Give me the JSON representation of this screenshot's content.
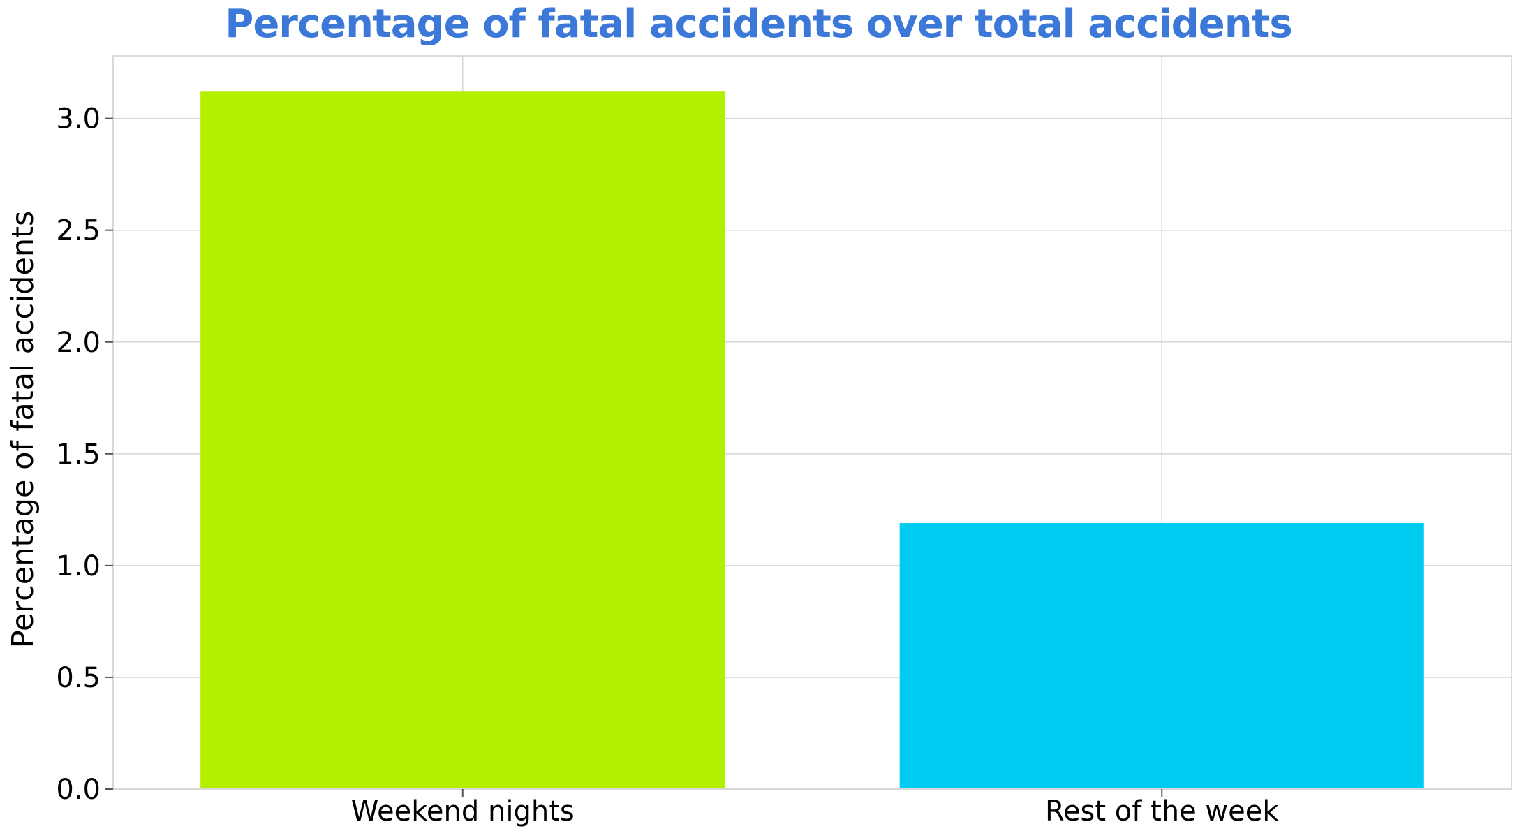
{
  "chart_data": {
    "type": "bar",
    "title": "Percentage of fatal accidents over total accidents",
    "xlabel": "",
    "ylabel": "Percentage of fatal accidents",
    "categories": [
      "Weekend nights",
      "Rest of the week"
    ],
    "values": [
      3.12,
      1.19
    ],
    "bar_colors": [
      "#b2f000",
      "#00ccf2"
    ],
    "ylim": [
      0,
      3.28
    ],
    "yticks": [
      0.0,
      0.5,
      1.0,
      1.5,
      2.0,
      2.5,
      3.0
    ],
    "ytick_labels": [
      "0.0",
      "0.5",
      "1.0",
      "1.5",
      "2.0",
      "2.5",
      "3.0"
    ],
    "grid": true,
    "title_color": "#3c78d8"
  }
}
